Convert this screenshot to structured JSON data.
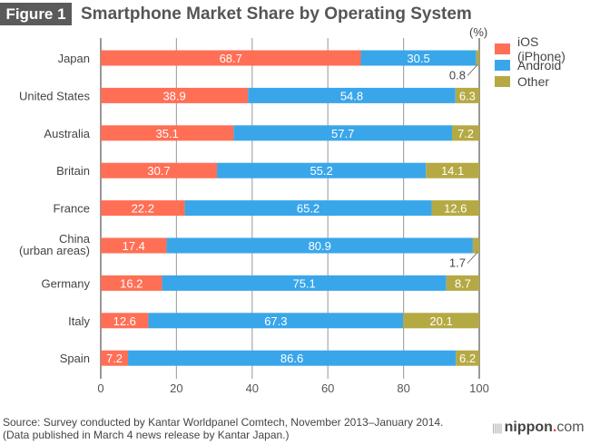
{
  "header": {
    "figure_label": "Figure 1",
    "title": "Smartphone Market Share by Operating System"
  },
  "footer": {
    "source_line1": "Source: Survey conducted by Kantar Worldpanel Comtech, November 2013–January 2014.",
    "source_line2": "(Data published in March 4 news release by Kantar Japan.)",
    "logo_main": "nippon",
    "logo_dot": ".",
    "logo_suffix": "com"
  },
  "chart_data": {
    "type": "bar",
    "orientation": "horizontal",
    "stacked": true,
    "title": "Smartphone Market Share by Operating System",
    "unit_label": "(%)",
    "xlabel": "",
    "ylabel": "",
    "xlim": [
      0,
      100
    ],
    "x_ticks": [
      0,
      20,
      40,
      60,
      80,
      100
    ],
    "grid": true,
    "legend_position": "top-right",
    "categories": [
      [
        "Japan"
      ],
      [
        "United States"
      ],
      [
        "Australia"
      ],
      [
        "Britain"
      ],
      [
        "France"
      ],
      [
        "China",
        "(urban areas)"
      ],
      [
        "Germany"
      ],
      [
        "Italy"
      ],
      [
        "Spain"
      ]
    ],
    "series": [
      {
        "name": "iOS (iPhone)",
        "color": "#ff6f55",
        "values": [
          68.7,
          38.9,
          35.1,
          30.7,
          22.2,
          17.4,
          16.2,
          12.6,
          7.2
        ]
      },
      {
        "name": "Android",
        "color": "#3aa6ea",
        "values": [
          30.5,
          54.8,
          57.7,
          55.2,
          65.2,
          80.9,
          75.1,
          67.3,
          86.6
        ]
      },
      {
        "name": "Other",
        "color": "#b5a944",
        "values": [
          0.8,
          6.3,
          7.2,
          14.1,
          12.6,
          1.7,
          8.7,
          20.1,
          6.2
        ]
      }
    ],
    "callouts": [
      {
        "category_index": 0,
        "series": "Other",
        "text": "0.8"
      },
      {
        "category_index": 5,
        "series": "Other",
        "text": "1.7"
      }
    ]
  }
}
